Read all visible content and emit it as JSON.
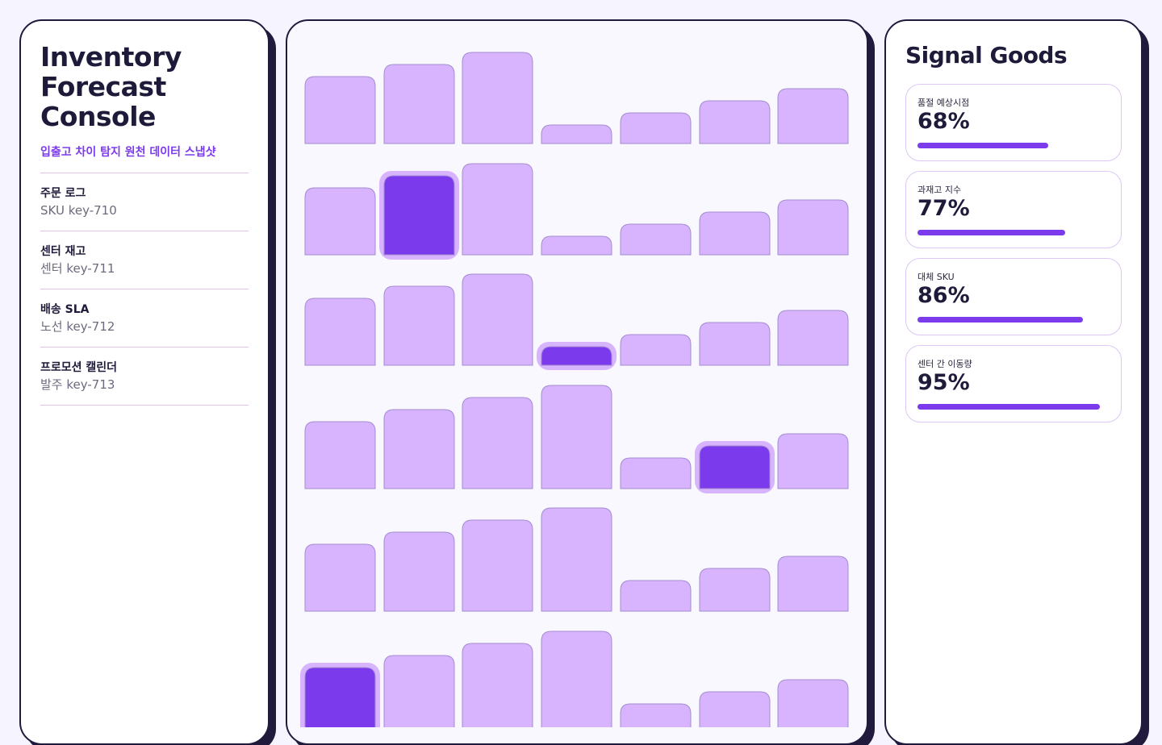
{
  "app": {
    "title": "Inventory Forecast Console",
    "subtitle": "입출고 차이 탐지 원천 데이터 스냅샷"
  },
  "sources": [
    {
      "name": "주문 로그",
      "key": "SKU key-710"
    },
    {
      "name": "센터 재고",
      "key": "센터 key-711"
    },
    {
      "name": "배송 SLA",
      "key": "노선 key-712"
    },
    {
      "name": "프로모션 캘린더",
      "key": "발주 key-713"
    }
  ],
  "signals": {
    "title": "Signal Goods",
    "items": [
      {
        "label": "품절 예상시점",
        "value": "68%",
        "level": 0.68
      },
      {
        "label": "과재고 지수",
        "value": "77%",
        "level": 0.77
      },
      {
        "label": "대체 SKU",
        "value": "86%",
        "level": 0.86
      },
      {
        "label": "센터 간 이동량",
        "value": "95%",
        "level": 0.95
      }
    ]
  },
  "colors": {
    "accent": "#7c3aed",
    "bar_fill": "#d8b4fe",
    "bar_stroke": "#a38bd0",
    "highlight_glow": "#d8b4fe",
    "panel_border": "#1f1b3d",
    "background": "#f6f4ff"
  },
  "grid": {
    "columns": 7,
    "rows": 6,
    "levels": [
      [
        0.55,
        0.65,
        0.75,
        0.15,
        0.25,
        0.35,
        0.45
      ],
      [
        0.55,
        0.65,
        0.75,
        0.15,
        0.25,
        0.35,
        0.45
      ],
      [
        0.55,
        0.65,
        0.75,
        0.15,
        0.25,
        0.35,
        0.45
      ],
      [
        0.55,
        0.65,
        0.75,
        0.85,
        0.25,
        0.35,
        0.45
      ],
      [
        0.55,
        0.65,
        0.75,
        0.85,
        0.25,
        0.35,
        0.45
      ],
      [
        0.55,
        0.65,
        0.75,
        0.85,
        0.25,
        0.35,
        0.45
      ]
    ],
    "highlighted": [
      {
        "row": 1,
        "col": 1
      },
      {
        "row": 2,
        "col": 3
      },
      {
        "row": 3,
        "col": 5
      },
      {
        "row": 5,
        "col": 0
      }
    ]
  }
}
